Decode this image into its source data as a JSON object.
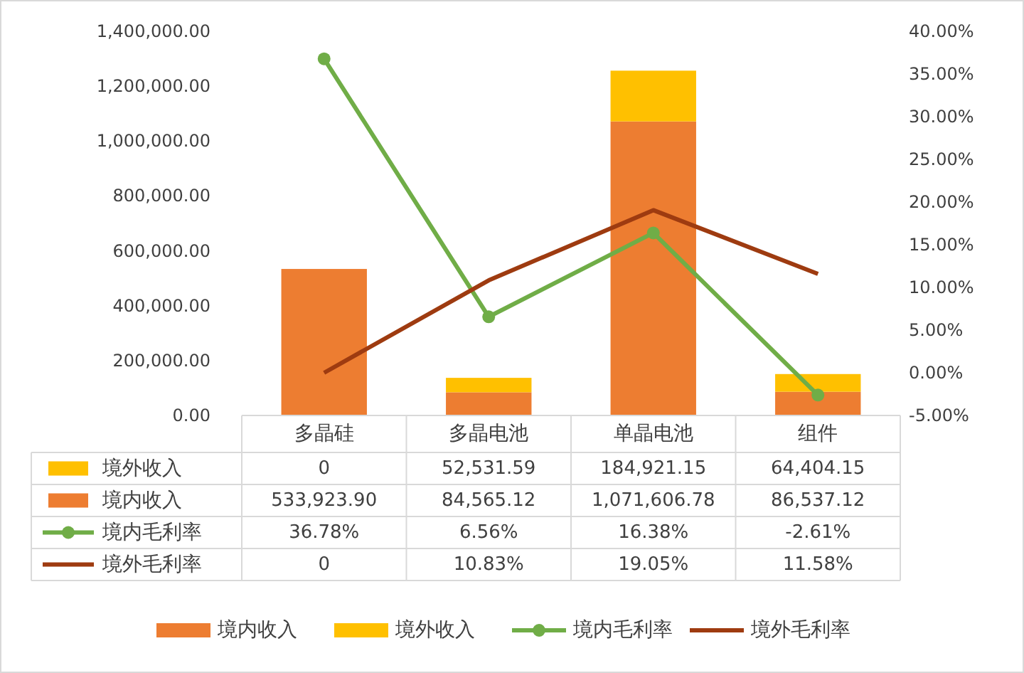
{
  "chart_data": {
    "type": "bar",
    "stacked": true,
    "categories": [
      "多晶硅",
      "多晶电池",
      "单晶电池",
      "组件"
    ],
    "series": [
      {
        "name": "境内收入",
        "color": "#ed7d31",
        "values": [
          533923.9,
          84565.12,
          1071606.78,
          86537.12
        ],
        "value_labels": [
          "533,923.90",
          "84,565.12",
          "1,071,606.78",
          "86,537.12"
        ]
      },
      {
        "name": "境外收入",
        "color": "#ffc000",
        "values": [
          0,
          52531.59,
          184921.15,
          64404.15
        ],
        "value_labels": [
          "0",
          "52,531.59",
          "184,921.15",
          "64,404.15"
        ]
      },
      {
        "name": "境内毛利率",
        "type": "line",
        "axis": "y2",
        "color": "#70ad47",
        "marker": "circle",
        "values": [
          36.78,
          6.56,
          16.38,
          -2.61
        ],
        "value_labels": [
          "36.78%",
          "6.56%",
          "16.38%",
          "-2.61%"
        ]
      },
      {
        "name": "境外毛利率",
        "type": "line",
        "axis": "y2",
        "color": "#9e3b10",
        "marker": "none",
        "values": [
          0,
          10.83,
          19.05,
          11.58
        ],
        "value_labels": [
          "0",
          "10.83%",
          "19.05%",
          "11.58%"
        ]
      }
    ],
    "ylim": [
      0,
      1400000
    ],
    "yticks": [
      {
        "value": 0,
        "label": "0.00"
      },
      {
        "value": 200000,
        "label": "200,000.00"
      },
      {
        "value": 400000,
        "label": "400,000.00"
      },
      {
        "value": 600000,
        "label": "600,000.00"
      },
      {
        "value": 800000,
        "label": "800,000.00"
      },
      {
        "value": 1000000,
        "label": "1,000,000.00"
      },
      {
        "value": 1200000,
        "label": "1,200,000.00"
      },
      {
        "value": 1400000,
        "label": "1,400,000.00"
      }
    ],
    "y2lim": [
      -5,
      40
    ],
    "y2ticks": [
      {
        "value": -5,
        "label": "-5.00%"
      },
      {
        "value": 0,
        "label": "0.00%"
      },
      {
        "value": 5,
        "label": "5.00%"
      },
      {
        "value": 10,
        "label": "10.00%"
      },
      {
        "value": 15,
        "label": "15.00%"
      },
      {
        "value": 20,
        "label": "20.00%"
      },
      {
        "value": 25,
        "label": "25.00%"
      },
      {
        "value": 30,
        "label": "30.00%"
      },
      {
        "value": 35,
        "label": "35.00%"
      },
      {
        "value": 40,
        "label": "40.00%"
      }
    ],
    "legend": "bottom",
    "data_labels": false
  }
}
